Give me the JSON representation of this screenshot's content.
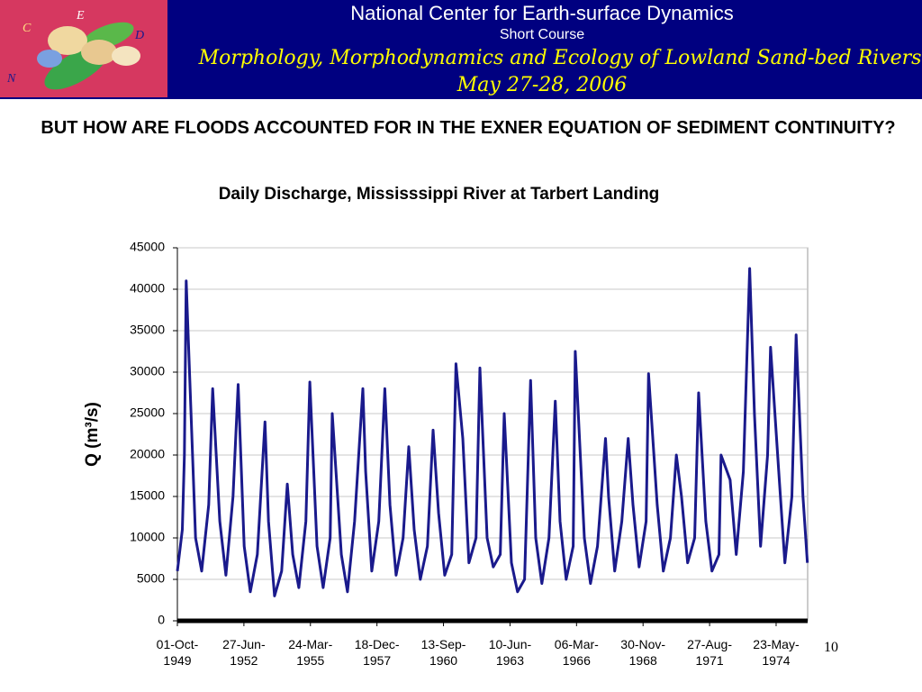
{
  "header": {
    "line1": "National Center for Earth-surface Dynamics",
    "line2": "Short Course",
    "line3": "Morphology, Morphodynamics and Ecology of Lowland Sand-bed Rivers",
    "line4": "May 27-28, 2006",
    "logo_letters": [
      "C",
      "E",
      "D",
      "N"
    ]
  },
  "slide_title": "BUT HOW ARE FLOODS ACCOUNTED FOR IN THE EXNER EQUATION OF SEDIMENT CONTINUITY?",
  "page_number": "10",
  "chart_data": {
    "type": "line",
    "title": "Daily Discharge, Mississsippi River at Tarbert Landing",
    "ylabel": "Q (m³/s)",
    "x": [
      "1949-10-01",
      "1949-12-15",
      "1950-01-15",
      "1950-02-10",
      "1950-07-01",
      "1950-10-01",
      "1951-01-15",
      "1951-03-15",
      "1951-07-01",
      "1951-10-01",
      "1952-01-15",
      "1952-04-01",
      "1952-07-01",
      "1952-10-01",
      "1953-01-15",
      "1953-05-10",
      "1953-07-01",
      "1953-10-01",
      "1954-01-15",
      "1954-04-10",
      "1954-07-01",
      "1954-10-01",
      "1955-01-15",
      "1955-03-15",
      "1955-07-01",
      "1955-10-01",
      "1956-01-15",
      "1956-02-15",
      "1956-07-01",
      "1956-10-01",
      "1957-01-15",
      "1957-05-20",
      "1957-07-01",
      "1957-10-01",
      "1958-01-15",
      "1958-04-15",
      "1958-07-01",
      "1958-10-01",
      "1959-01-15",
      "1959-04-10",
      "1959-07-01",
      "1959-10-01",
      "1960-01-15",
      "1960-04-10",
      "1960-07-01",
      "1960-10-01",
      "1961-01-15",
      "1961-03-20",
      "1961-07-01",
      "1961-10-01",
      "1962-01-15",
      "1962-03-15",
      "1962-07-01",
      "1962-10-01",
      "1963-01-15",
      "1963-03-15",
      "1963-07-01",
      "1963-10-01",
      "1964-01-15",
      "1964-04-15",
      "1964-07-01",
      "1964-10-01",
      "1965-01-15",
      "1965-04-20",
      "1965-07-01",
      "1965-10-01",
      "1966-01-15",
      "1966-02-15",
      "1966-07-01",
      "1966-10-01",
      "1967-01-15",
      "1967-05-15",
      "1967-07-01",
      "1967-10-01",
      "1968-01-15",
      "1968-04-20",
      "1968-07-01",
      "1968-10-01",
      "1969-01-15",
      "1969-02-20",
      "1969-07-01",
      "1969-10-01",
      "1970-01-15",
      "1970-04-15",
      "1970-07-01",
      "1970-10-01",
      "1971-01-15",
      "1971-03-15",
      "1971-07-01",
      "1971-10-01",
      "1972-01-15",
      "1972-02-15",
      "1972-07-01",
      "1972-10-01",
      "1973-01-15",
      "1973-04-20",
      "1973-07-01",
      "1973-10-01",
      "1974-01-15",
      "1974-03-01",
      "1974-07-01",
      "1974-10-01",
      "1975-01-15",
      "1975-03-20",
      "1975-07-01",
      "1975-09-05"
    ],
    "series": [
      {
        "color": "#1a1a8c",
        "values": [
          6000,
          11000,
          20000,
          41000,
          10000,
          6000,
          14000,
          28000,
          12000,
          5500,
          15000,
          28500,
          9000,
          3500,
          8000,
          24000,
          12000,
          3000,
          6000,
          16500,
          8000,
          4000,
          12000,
          28800,
          9000,
          4000,
          10000,
          25000,
          8000,
          3500,
          12000,
          28000,
          18000,
          6000,
          12000,
          28000,
          14000,
          5500,
          10000,
          21000,
          11000,
          5000,
          9000,
          23000,
          13000,
          5500,
          8000,
          31000,
          22000,
          7000,
          10000,
          30500,
          10000,
          6500,
          8000,
          25000,
          7000,
          3500,
          5000,
          29000,
          10000,
          4500,
          10000,
          26500,
          12000,
          5000,
          9000,
          32500,
          10000,
          4500,
          9000,
          22000,
          15000,
          6000,
          12000,
          22000,
          14000,
          6500,
          12000,
          29800,
          14000,
          6000,
          10000,
          20000,
          15000,
          7000,
          10000,
          27500,
          12000,
          6000,
          8000,
          20000,
          17000,
          8000,
          18000,
          42500,
          25000,
          9000,
          20000,
          33000,
          18000,
          7000,
          15000,
          34500,
          15000,
          7000
        ]
      }
    ],
    "xlim": [
      "1949-10-01",
      "1975-09-09"
    ],
    "xticks": [
      {
        "value": "1949-10-01",
        "label": "01-Oct-1949"
      },
      {
        "value": "1952-06-27",
        "label": "27-Jun-1952"
      },
      {
        "value": "1955-03-24",
        "label": "24-Mar-1955"
      },
      {
        "value": "1957-12-18",
        "label": "18-Dec-1957"
      },
      {
        "value": "1960-09-13",
        "label": "13-Sep-1960"
      },
      {
        "value": "1963-06-10",
        "label": "10-Jun-1963"
      },
      {
        "value": "1966-03-06",
        "label": "06-Mar-1966"
      },
      {
        "value": "1968-11-30",
        "label": "30-Nov-1968"
      },
      {
        "value": "1971-08-27",
        "label": "27-Aug-1971"
      },
      {
        "value": "1974-05-23",
        "label": "23-May-1974"
      }
    ],
    "ylim": [
      0,
      45000
    ],
    "yticks": [
      0,
      5000,
      10000,
      15000,
      20000,
      25000,
      30000,
      35000,
      40000,
      45000
    ],
    "grid": true
  }
}
